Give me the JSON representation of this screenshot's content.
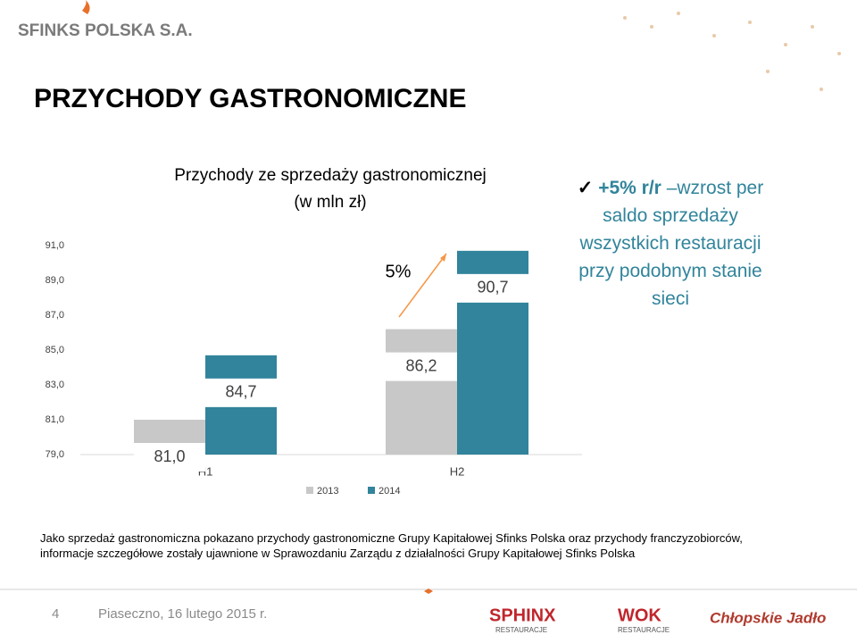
{
  "logo": "SFINKS POLSKA S.A.",
  "heading": "PRZYCHODY GASTRONOMICZNE",
  "chart_data": {
    "type": "bar",
    "title": [
      "Przychody ze sprzedaży gastronomicznej",
      "(w mln zł)"
    ],
    "categories": [
      "H1",
      "H2"
    ],
    "series": [
      {
        "name": "2013",
        "color": "#c8c8c8",
        "values": [
          81.0,
          86.2
        ],
        "value_labels": [
          "81,0",
          "86,2"
        ]
      },
      {
        "name": "2014",
        "color": "#31849b",
        "values": [
          84.7,
          90.7
        ],
        "value_labels": [
          "84,7",
          "90,7"
        ]
      }
    ],
    "ylim": [
      79,
      91
    ],
    "yticks": [
      {
        "value": 79,
        "label": "79,0"
      },
      {
        "value": 81,
        "label": "81,0"
      },
      {
        "value": 83,
        "label": "83,0"
      },
      {
        "value": 85,
        "label": "85,0"
      },
      {
        "value": 87,
        "label": "87,0"
      },
      {
        "value": 89,
        "label": "89,0"
      },
      {
        "value": 91,
        "label": "91,0"
      }
    ],
    "annotation": "5%",
    "legend": "bottom"
  },
  "bullet": {
    "bold": "+5% r/r",
    "text": "–wzrost per saldo sprzedaży wszystkich restauracji przy podobnym stanie sieci"
  },
  "note": [
    "Jako sprzedaż gastronomiczna pokazano przychody gastronomiczne Grupy Kapitałowej Sfinks Polska oraz  przychody franczyzobiorców,",
    "informacje szczegółowe zostały ujawnione w Sprawozdaniu Zarządu z działalności Grupy Kapitałowej Sfinks Polska"
  ],
  "footer": {
    "page": "4",
    "place": "Piaseczno, 16 lutego 2015 r.",
    "brands": [
      "SPHINX",
      "RESTAURACJE",
      "WOK",
      "RESTAURACJE",
      "Chłopskie Jadło"
    ]
  }
}
